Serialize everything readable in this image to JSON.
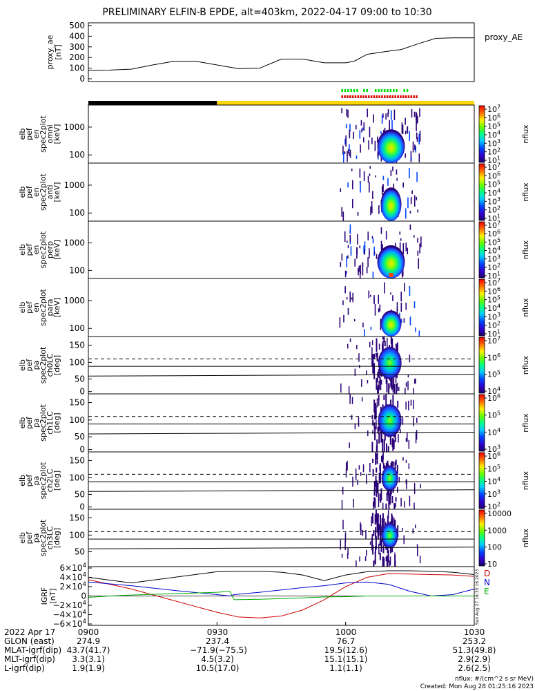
{
  "chart_data": {
    "type": "heatmap",
    "title": "PRELIMINARY ELFIN-B EPDE, alt=403km, 2022-04-17 09:00 to 10:30",
    "time_axis": {
      "start": "09:00",
      "end": "10:30",
      "tick_labels": [
        "0900",
        "0930",
        "1000",
        "1030"
      ]
    },
    "panels": [
      {
        "id": "proxy_ae",
        "type": "line",
        "ylabel": [
          "proxy_ae",
          "[nT]"
        ],
        "yticks": [
          "500",
          "400",
          "300",
          "200",
          "100",
          "0"
        ],
        "ylim": [
          0,
          500
        ],
        "series": [
          {
            "name": "proxy_AE",
            "x_min": [
              0,
              5,
              10,
              15,
              20,
              25,
              30,
              35,
              40,
              45,
              50,
              55,
              60,
              62,
              65,
              70,
              73,
              77,
              81,
              85,
              90
            ],
            "values": [
              80,
              82,
              90,
              130,
              165,
              165,
              130,
              95,
              100,
              185,
              185,
              150,
              150,
              165,
              230,
              260,
              275,
              330,
              380,
              385,
              385
            ]
          }
        ]
      },
      {
        "id": "omni",
        "type": "spectrogram",
        "ylabel": [
          "elb",
          "pef",
          "en",
          "spec2plot",
          "omni",
          "[keV]"
        ],
        "yticks": [
          "1000",
          "100"
        ],
        "cbar_label": "nflux",
        "cbar_ticks": [
          "10^7",
          "10^6",
          "10^5",
          "10^4",
          "10^3",
          "10^2",
          "10^1"
        ]
      },
      {
        "id": "anti",
        "type": "spectrogram",
        "ylabel": [
          "elb",
          "pef",
          "en",
          "spec2plot",
          "anti",
          "[keV]"
        ],
        "yticks": [
          "1000",
          "100"
        ],
        "cbar_label": "nflux",
        "cbar_ticks": [
          "10^7",
          "10^6",
          "10^5",
          "10^4",
          "10^3",
          "10^2",
          "10^1"
        ]
      },
      {
        "id": "perp",
        "type": "spectrogram",
        "ylabel": [
          "elb",
          "pef",
          "en",
          "spec2plot",
          "perp",
          "[keV]"
        ],
        "yticks": [
          "1000",
          "100"
        ],
        "cbar_label": "nflux",
        "cbar_ticks": [
          "10^7",
          "10^6",
          "10^5",
          "10^4",
          "10^3",
          "10^2",
          "10^1"
        ]
      },
      {
        "id": "para",
        "type": "spectrogram",
        "ylabel": [
          "elb",
          "pef",
          "en",
          "spec2plot",
          "para",
          "[keV]"
        ],
        "yticks": [
          "1000",
          "100"
        ],
        "cbar_label": "nflux",
        "cbar_ticks": [
          "10^7",
          "10^6",
          "10^5",
          "10^4",
          "10^3",
          "10^2",
          "10^1"
        ]
      },
      {
        "id": "ch0LC",
        "type": "spectrogram",
        "ylabel": [
          "elb",
          "pef",
          "pa",
          "spec2plot",
          "ch0LC",
          "[deg]"
        ],
        "yticks": [
          "150",
          "100",
          "50",
          "0"
        ],
        "cbar_label": "nflux",
        "cbar_ticks": [
          "10^7",
          "10^6",
          "10^5",
          "10^4"
        ]
      },
      {
        "id": "ch1LC",
        "type": "spectrogram",
        "ylabel": [
          "elb",
          "pef",
          "pa",
          "spec2plot",
          "ch1LC",
          "[deg]"
        ],
        "yticks": [
          "150",
          "100",
          "50",
          "0"
        ],
        "cbar_label": "nflux",
        "cbar_ticks": [
          "10^6",
          "10^5",
          "10^4",
          "10^3"
        ]
      },
      {
        "id": "ch2LC",
        "type": "spectrogram",
        "ylabel": [
          "elb",
          "pef",
          "pa",
          "spec2plot",
          "ch2LC",
          "[deg]"
        ],
        "yticks": [
          "150",
          "100",
          "50",
          "0"
        ],
        "cbar_label": "nflux",
        "cbar_ticks": [
          "10^6",
          "10^5",
          "10^4",
          "10^3",
          "10^2"
        ]
      },
      {
        "id": "ch3LC",
        "type": "spectrogram",
        "ylabel": [
          "elb",
          "pef",
          "pa",
          "spec2plot",
          "ch3LC",
          "[deg]"
        ],
        "yticks": [
          "150",
          "100",
          "50"
        ],
        "cbar_label": "nflux",
        "cbar_ticks": [
          "10000",
          "1000",
          "100",
          "10"
        ]
      },
      {
        "id": "igrf",
        "type": "line",
        "ylabel": [
          "IGRF",
          "[nT]"
        ],
        "yticks": [
          "6×10^4",
          "4×10^4",
          "2×10^4",
          "0",
          "−2×10^4",
          "−4×10^4",
          "−6×10^4"
        ],
        "ylim": [
          -60000,
          60000
        ],
        "legend": [
          "D",
          "N",
          "E"
        ],
        "side_label": "Sun Aug 27 18:35:16 2023",
        "series": [
          {
            "name": "D",
            "color": "#cc0000",
            "x_min": [
              0,
              10,
              20,
              30,
              35,
              40,
              45,
              50,
              55,
              60,
              65,
              70,
              75,
              80,
              85,
              90
            ],
            "values": [
              35000,
              15000,
              -10000,
              -35000,
              -45000,
              -47000,
              -43000,
              -30000,
              -8000,
              20000,
              40000,
              48000,
              47000,
              46000,
              45000,
              42000
            ]
          },
          {
            "name": "N",
            "color": "#0000cc",
            "x_min": [
              0,
              10,
              20,
              30,
              33,
              34,
              40,
              50,
              55,
              60,
              65,
              70,
              75,
              80,
              85,
              90
            ],
            "values": [
              30000,
              22000,
              12000,
              3000,
              0,
              3000,
              8000,
              18000,
              22000,
              28000,
              30000,
              25000,
              10000,
              0,
              3000,
              15000
            ]
          },
          {
            "name": "E",
            "color": "#00aa00",
            "x_min": [
              0,
              5,
              10,
              20,
              30,
              33,
              34,
              40,
              50,
              55,
              60,
              65,
              70,
              80,
              90
            ],
            "values": [
              -3000,
              0,
              2000,
              5000,
              8000,
              10000,
              -8000,
              -7000,
              -4000,
              -2000,
              -1500,
              0,
              0,
              0,
              0
            ]
          },
          {
            "name": "",
            "color": "#000000",
            "x_min": [
              0,
              10,
              20,
              30,
              35,
              40,
              45,
              50,
              55,
              60,
              65,
              70,
              75,
              80,
              85,
              90
            ],
            "values": [
              40000,
              28000,
              40000,
              52000,
              53000,
              53000,
              51000,
              45000,
              33000,
              45000,
              52000,
              54000,
              54000,
              53000,
              51000,
              46000
            ]
          }
        ]
      }
    ]
  },
  "bottom_table": {
    "rows": [
      {
        "label": "2022 Apr 17",
        "values": [
          "0900",
          "0930",
          "1000",
          "1030"
        ]
      },
      {
        "label": "GLON (east)",
        "values": [
          "274.9",
          "237.4",
          "76.7",
          "253.2"
        ]
      },
      {
        "label": "MLAT-igrf(dip)",
        "values": [
          "43.7(41.7)",
          "−71.9(−75.5)",
          "19.5(12.6)",
          "51.3(49.8)"
        ]
      },
      {
        "label": "MLT-igrf(dip)",
        "values": [
          "3.3(3.1)",
          "4.5(3.2)",
          "15.1(15.1)",
          "2.9(2.9)"
        ]
      },
      {
        "label": "L-igrf(dip)",
        "values": [
          "1.9(1.9)",
          "10.5(17.0)",
          "1.1(1.1)",
          "2.6(2.5)"
        ]
      }
    ]
  },
  "footer": {
    "units": "nflux: #/(cm^2 s sr MeV)",
    "created": "Created: Mon Aug 28 01:25:16 2023"
  }
}
